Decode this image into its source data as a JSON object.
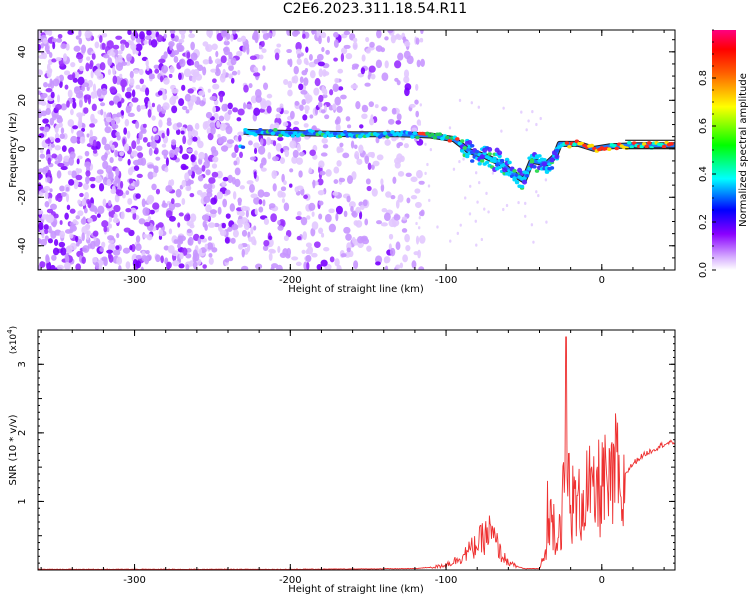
{
  "title": "C2E6.2023.311.18.54.R11",
  "chart_data": [
    {
      "type": "heatmap",
      "xlabel": "Height of straight line (km)",
      "ylabel": "Frequency (Hz)",
      "xlim": [
        -362,
        47
      ],
      "ylim": [
        -50,
        49
      ],
      "x_ticks": [
        -300,
        -200,
        -100,
        0
      ],
      "y_ticks": [
        -40,
        -20,
        0,
        20,
        40
      ],
      "colorbar": {
        "label": "Normalized spectral amplitude",
        "range": [
          0,
          1
        ],
        "ticks": [
          0.0,
          0.2,
          0.4,
          0.6,
          0.8
        ],
        "tick_labels": [
          "0.0",
          "0.2",
          "0.4",
          "0.6",
          "0.8"
        ],
        "colormap": [
          "#ffffff",
          "#8a00ff",
          "#0000ff",
          "#00ffff",
          "#00ff00",
          "#ffff00",
          "#ff0000",
          "#ff0080"
        ]
      },
      "ridge": [
        {
          "x": -230,
          "y": 7
        },
        {
          "x": -200,
          "y": 6.5
        },
        {
          "x": -160,
          "y": 6
        },
        {
          "x": -130,
          "y": 6
        },
        {
          "x": -110,
          "y": 5.5
        },
        {
          "x": -95,
          "y": 4
        },
        {
          "x": -85,
          "y": -1
        },
        {
          "x": -75,
          "y": -3
        },
        {
          "x": -65,
          "y": -6
        },
        {
          "x": -55,
          "y": -11
        },
        {
          "x": -50,
          "y": -13
        },
        {
          "x": -45,
          "y": -5
        },
        {
          "x": -35,
          "y": -6
        },
        {
          "x": -30,
          "y": -3
        },
        {
          "x": -27,
          "y": 2
        },
        {
          "x": -15,
          "y": 2
        },
        {
          "x": -5,
          "y": 0
        },
        {
          "x": 5,
          "y": 1
        },
        {
          "x": 20,
          "y": 1.5
        },
        {
          "x": 47,
          "y": 1.5
        }
      ],
      "noise_extent_x": [
        -362,
        -125
      ]
    },
    {
      "type": "line",
      "xlabel": "Height of straight line (km)",
      "ylabel": "SNR (10 * v/v)",
      "y_multiplier": "(x10",
      "y_multiplier_exp": "4",
      "y_multiplier_close": ")",
      "xlim": [
        -362,
        47
      ],
      "ylim": [
        0,
        3.5
      ],
      "x_ticks": [
        -300,
        -200,
        -100,
        0
      ],
      "y_ticks": [
        1,
        2,
        3
      ],
      "color": "#ee3030",
      "series": [
        {
          "x": [
            -362,
            -300,
            -200,
            -120,
            -105,
            -95,
            -85,
            -78,
            -72,
            -68,
            -64,
            -58,
            -50,
            -40,
            -35,
            -32,
            -30,
            -28,
            -26,
            -24,
            -22,
            -20,
            -15,
            -10,
            -5,
            0,
            5,
            10,
            12,
            15,
            20,
            25,
            30,
            35,
            40,
            47
          ],
          "y": [
            0.01,
            0.01,
            0.01,
            0.02,
            0.05,
            0.12,
            0.28,
            0.42,
            0.55,
            0.4,
            0.2,
            0.08,
            0.02,
            0.02,
            0.3,
            0.9,
            0.6,
            0.5,
            0.8,
            1.1,
            1.4,
            1.0,
            0.9,
            1.2,
            1.0,
            1.3,
            1.1,
            1.5,
            0.7,
            1.4,
            1.55,
            1.65,
            1.72,
            1.78,
            1.84,
            1.86
          ]
        }
      ],
      "spikes": [
        {
          "x": -35,
          "y": 1.3
        },
        {
          "x": -23,
          "y": 3.4
        },
        {
          "x": -21,
          "y": 1.7
        },
        {
          "x": 10,
          "y": 2.15
        }
      ]
    }
  ]
}
